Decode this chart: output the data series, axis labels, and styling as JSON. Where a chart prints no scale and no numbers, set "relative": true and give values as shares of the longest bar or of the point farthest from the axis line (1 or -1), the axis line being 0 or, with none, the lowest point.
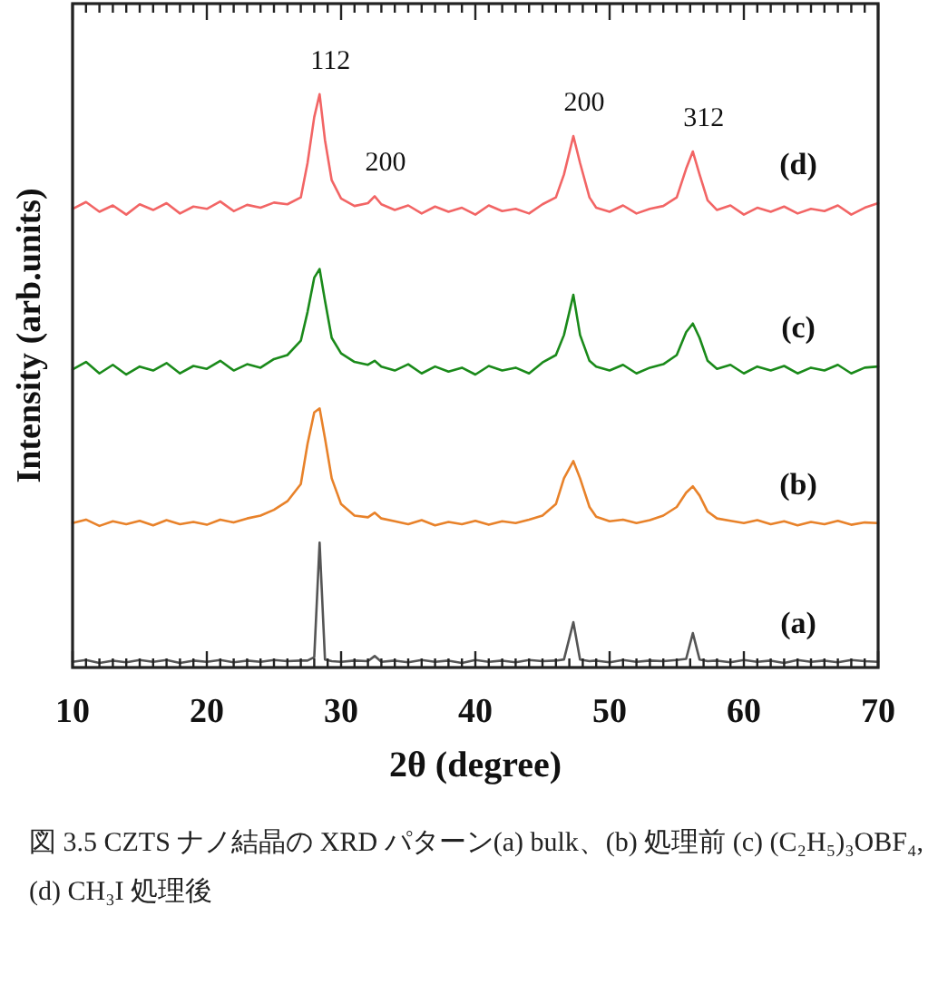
{
  "chart_data": {
    "type": "line",
    "relative": true,
    "xlabel": "2θ (degree)",
    "ylabel": "Intensity (arb.units)",
    "tick_labels": "x",
    "xlim": [
      10,
      70
    ],
    "xticks": [
      10,
      {
        "value": 11,
        "label": null
      },
      {
        "value": 12,
        "label": null
      },
      {
        "value": 13,
        "label": null
      },
      {
        "value": 14,
        "label": null
      },
      {
        "value": 15,
        "label": null
      },
      {
        "value": 16,
        "label": null
      },
      {
        "value": 17,
        "label": null
      },
      {
        "value": 18,
        "label": null
      },
      {
        "value": 19,
        "label": null
      },
      20,
      {
        "value": 21,
        "label": null
      },
      {
        "value": 22,
        "label": null
      },
      {
        "value": 23,
        "label": null
      },
      {
        "value": 24,
        "label": null
      },
      {
        "value": 25,
        "label": null
      },
      {
        "value": 26,
        "label": null
      },
      {
        "value": 27,
        "label": null
      },
      {
        "value": 28,
        "label": null
      },
      {
        "value": 29,
        "label": null
      },
      30,
      {
        "value": 31,
        "label": null
      },
      {
        "value": 32,
        "label": null
      },
      {
        "value": 33,
        "label": null
      },
      {
        "value": 34,
        "label": null
      },
      {
        "value": 35,
        "label": null
      },
      {
        "value": 36,
        "label": null
      },
      {
        "value": 37,
        "label": null
      },
      {
        "value": 38,
        "label": null
      },
      {
        "value": 39,
        "label": null
      },
      40,
      {
        "value": 41,
        "label": null
      },
      {
        "value": 42,
        "label": null
      },
      {
        "value": 43,
        "label": null
      },
      {
        "value": 44,
        "label": null
      },
      {
        "value": 45,
        "label": null
      },
      {
        "value": 46,
        "label": null
      },
      {
        "value": 47,
        "label": null
      },
      {
        "value": 48,
        "label": null
      },
      {
        "value": 49,
        "label": null
      },
      50,
      {
        "value": 51,
        "label": null
      },
      {
        "value": 52,
        "label": null
      },
      {
        "value": 53,
        "label": null
      },
      {
        "value": 54,
        "label": null
      },
      {
        "value": 55,
        "label": null
      },
      {
        "value": 56,
        "label": null
      },
      {
        "value": 57,
        "label": null
      },
      {
        "value": 58,
        "label": null
      },
      {
        "value": 59,
        "label": null
      },
      60,
      {
        "value": 61,
        "label": null
      },
      {
        "value": 62,
        "label": null
      },
      {
        "value": 63,
        "label": null
      },
      {
        "value": 64,
        "label": null
      },
      {
        "value": 65,
        "label": null
      },
      {
        "value": 66,
        "label": null
      },
      {
        "value": 67,
        "label": null
      },
      {
        "value": 68,
        "label": null
      },
      {
        "value": 69,
        "label": null
      },
      70
    ],
    "x": [
      10,
      11,
      12,
      13,
      14,
      15,
      16,
      17,
      18,
      19,
      20,
      21,
      22,
      23,
      24,
      25,
      26,
      27,
      27.5,
      28,
      28.4,
      28.8,
      29.3,
      30,
      31,
      32,
      32.5,
      33,
      34,
      35,
      36,
      37,
      38,
      39,
      40,
      41,
      42,
      43,
      44,
      45,
      46,
      46.6,
      47.3,
      47.8,
      48.5,
      49,
      50,
      51,
      52,
      53,
      54,
      55,
      55.7,
      56.2,
      56.7,
      57.3,
      58,
      59,
      60,
      61,
      62,
      63,
      64,
      65,
      66,
      67,
      68,
      69,
      70
    ],
    "series": [
      {
        "name": "(d)",
        "color": "#f26565",
        "values": [
          0.8,
          0.812,
          0.795,
          0.806,
          0.79,
          0.808,
          0.798,
          0.81,
          0.792,
          0.804,
          0.8,
          0.813,
          0.796,
          0.807,
          0.802,
          0.811,
          0.808,
          0.82,
          0.88,
          0.96,
          1.0,
          0.92,
          0.85,
          0.818,
          0.805,
          0.81,
          0.822,
          0.808,
          0.798,
          0.806,
          0.792,
          0.804,
          0.795,
          0.802,
          0.79,
          0.806,
          0.796,
          0.8,
          0.792,
          0.808,
          0.82,
          0.86,
          0.927,
          0.88,
          0.82,
          0.802,
          0.795,
          0.806,
          0.792,
          0.8,
          0.805,
          0.82,
          0.87,
          0.9,
          0.86,
          0.815,
          0.798,
          0.806,
          0.79,
          0.802,
          0.795,
          0.804,
          0.792,
          0.8,
          0.796,
          0.806,
          0.79,
          0.802,
          0.81
        ]
      },
      {
        "name": "(c)",
        "color": "#1a8a1a",
        "values": [
          0.52,
          0.533,
          0.513,
          0.528,
          0.511,
          0.525,
          0.518,
          0.531,
          0.513,
          0.526,
          0.521,
          0.535,
          0.518,
          0.529,
          0.523,
          0.538,
          0.545,
          0.57,
          0.62,
          0.68,
          0.695,
          0.64,
          0.575,
          0.548,
          0.533,
          0.528,
          0.535,
          0.525,
          0.518,
          0.529,
          0.513,
          0.525,
          0.516,
          0.523,
          0.511,
          0.526,
          0.518,
          0.523,
          0.513,
          0.532,
          0.545,
          0.58,
          0.65,
          0.58,
          0.535,
          0.525,
          0.518,
          0.528,
          0.513,
          0.523,
          0.529,
          0.545,
          0.585,
          0.6,
          0.575,
          0.535,
          0.521,
          0.528,
          0.513,
          0.525,
          0.518,
          0.526,
          0.513,
          0.523,
          0.518,
          0.528,
          0.513,
          0.523,
          0.525
        ]
      },
      {
        "name": "(b)",
        "color": "#e8822a",
        "values": [
          0.252,
          0.258,
          0.247,
          0.255,
          0.25,
          0.256,
          0.248,
          0.257,
          0.25,
          0.254,
          0.249,
          0.258,
          0.253,
          0.26,
          0.265,
          0.275,
          0.29,
          0.32,
          0.39,
          0.445,
          0.452,
          0.4,
          0.33,
          0.285,
          0.265,
          0.262,
          0.27,
          0.26,
          0.255,
          0.25,
          0.257,
          0.248,
          0.254,
          0.25,
          0.256,
          0.249,
          0.255,
          0.252,
          0.258,
          0.265,
          0.285,
          0.33,
          0.36,
          0.33,
          0.28,
          0.263,
          0.255,
          0.258,
          0.252,
          0.257,
          0.265,
          0.28,
          0.305,
          0.316,
          0.3,
          0.272,
          0.26,
          0.256,
          0.252,
          0.257,
          0.25,
          0.255,
          0.248,
          0.254,
          0.25,
          0.256,
          0.249,
          0.253,
          0.252
        ]
      },
      {
        "name": "(a)",
        "color": "#555555",
        "values": [
          0.01,
          0.013,
          0.008,
          0.012,
          0.009,
          0.013,
          0.01,
          0.013,
          0.008,
          0.012,
          0.01,
          0.013,
          0.009,
          0.012,
          0.01,
          0.013,
          0.011,
          0.012,
          0.012,
          0.018,
          0.218,
          0.014,
          0.011,
          0.01,
          0.012,
          0.011,
          0.02,
          0.01,
          0.012,
          0.009,
          0.013,
          0.01,
          0.012,
          0.008,
          0.013,
          0.01,
          0.012,
          0.009,
          0.013,
          0.011,
          0.012,
          0.014,
          0.079,
          0.014,
          0.011,
          0.012,
          0.009,
          0.013,
          0.01,
          0.012,
          0.011,
          0.013,
          0.015,
          0.06,
          0.014,
          0.011,
          0.012,
          0.009,
          0.013,
          0.01,
          0.012,
          0.008,
          0.013,
          0.01,
          0.012,
          0.009,
          0.013,
          0.011,
          0.01
        ]
      }
    ],
    "annotations": [
      {
        "text": "112",
        "x": 28.4,
        "y": 1.0
      },
      {
        "text": "200",
        "x": 32.5,
        "y": 0.822
      },
      {
        "text": "200",
        "x": 47.3,
        "y": 0.927
      },
      {
        "text": "312",
        "x": 56.2,
        "y": 0.9
      },
      "図 3.5 CZTS ナノ結晶の XRD パターン(a) bulk、(b) 処理前 (c) (C₂H₅)₃OBF₄, (d) CH₃I 処理後"
    ]
  }
}
